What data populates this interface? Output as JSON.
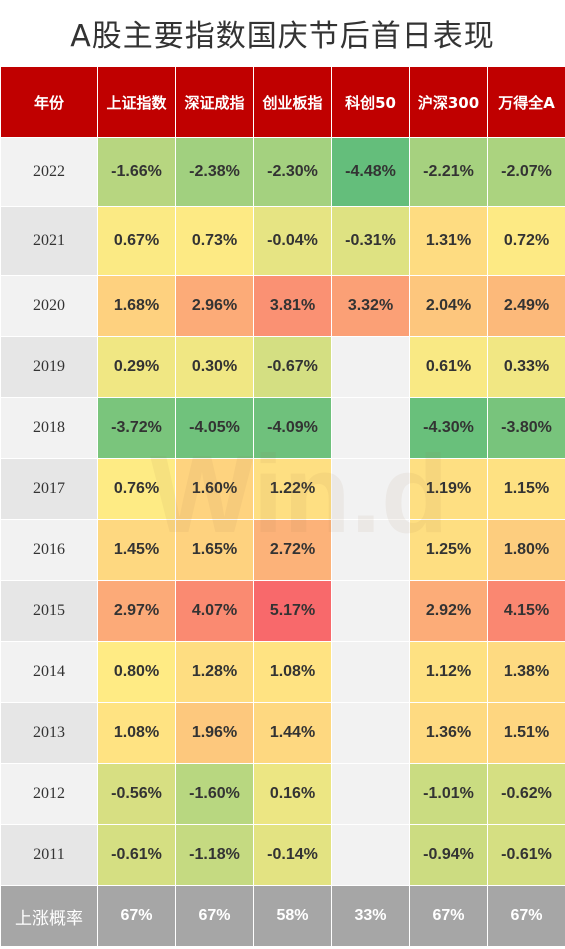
{
  "title": "A股主要指数国庆节后首日表现",
  "watermark": "Win.d",
  "chart_data": {
    "type": "table",
    "title": "A股主要指数国庆节后首日表现",
    "header_label": "年份",
    "columns": [
      "上证指数",
      "深证成指",
      "创业板指",
      "科创50",
      "沪深300",
      "万得全A"
    ],
    "rows": [
      {
        "year": "2022",
        "values": [
          "-1.66%",
          "-2.38%",
          "-2.30%",
          "-4.48%",
          "-2.21%",
          "-2.07%"
        ]
      },
      {
        "year": "2021",
        "values": [
          "0.67%",
          "0.73%",
          "-0.04%",
          "-0.31%",
          "1.31%",
          "0.72%"
        ]
      },
      {
        "year": "2020",
        "values": [
          "1.68%",
          "2.96%",
          "3.81%",
          "3.32%",
          "2.04%",
          "2.49%"
        ]
      },
      {
        "year": "2019",
        "values": [
          "0.29%",
          "0.30%",
          "-0.67%",
          "",
          "0.61%",
          "0.33%"
        ]
      },
      {
        "year": "2018",
        "values": [
          "-3.72%",
          "-4.05%",
          "-4.09%",
          "",
          "-4.30%",
          "-3.80%"
        ]
      },
      {
        "year": "2017",
        "values": [
          "0.76%",
          "1.60%",
          "1.22%",
          "",
          "1.19%",
          "1.15%"
        ]
      },
      {
        "year": "2016",
        "values": [
          "1.45%",
          "1.65%",
          "2.72%",
          "",
          "1.25%",
          "1.80%"
        ]
      },
      {
        "year": "2015",
        "values": [
          "2.97%",
          "4.07%",
          "5.17%",
          "",
          "2.92%",
          "4.15%"
        ]
      },
      {
        "year": "2014",
        "values": [
          "0.80%",
          "1.28%",
          "1.08%",
          "",
          "1.12%",
          "1.38%"
        ]
      },
      {
        "year": "2013",
        "values": [
          "1.08%",
          "1.96%",
          "1.44%",
          "",
          "1.36%",
          "1.51%"
        ]
      },
      {
        "year": "2012",
        "values": [
          "-0.56%",
          "-1.60%",
          "0.16%",
          "",
          "-1.01%",
          "-0.62%"
        ]
      },
      {
        "year": "2011",
        "values": [
          "-0.61%",
          "-1.18%",
          "-0.14%",
          "",
          "-0.94%",
          "-0.61%"
        ]
      }
    ],
    "footer": {
      "label": "上涨概率",
      "values": [
        "67%",
        "67%",
        "58%",
        "33%",
        "67%",
        "67%"
      ]
    },
    "colors": {
      "header_bg": "#c00000",
      "footer_bg": "#a6a6a6",
      "scale_min": "#63be7b",
      "scale_mid": "#ffeb84",
      "scale_max": "#f8696b"
    }
  }
}
